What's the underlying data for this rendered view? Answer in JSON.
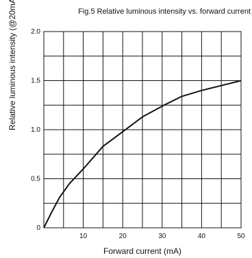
{
  "chart_data": {
    "type": "line",
    "title": "Fig.5 Relative luminous intensity vs. forward current",
    "xlabel": "Forward current (mA)",
    "ylabel": "Relative luminous intensity (@20mA)",
    "xlim": [
      0,
      50
    ],
    "ylim": [
      0,
      2.0
    ],
    "x_ticks": [
      10,
      20,
      30,
      40,
      50
    ],
    "x_tick_labels": [
      "10",
      "20",
      "30",
      "40",
      "50"
    ],
    "y_ticks": [
      0,
      0.5,
      1.0,
      1.5,
      2.0
    ],
    "y_tick_labels": [
      "0",
      "0.5",
      "1.0",
      "1.5",
      "2.0"
    ],
    "grid": true,
    "series": [
      {
        "x": [
          0,
          2,
          4,
          6.5,
          10,
          15,
          20,
          25,
          30,
          35,
          40,
          45,
          50
        ],
        "y": [
          0,
          0.16,
          0.31,
          0.45,
          0.6,
          0.83,
          0.98,
          1.13,
          1.24,
          1.34,
          1.4,
          1.45,
          1.5
        ]
      }
    ],
    "line_color": "#111111"
  }
}
